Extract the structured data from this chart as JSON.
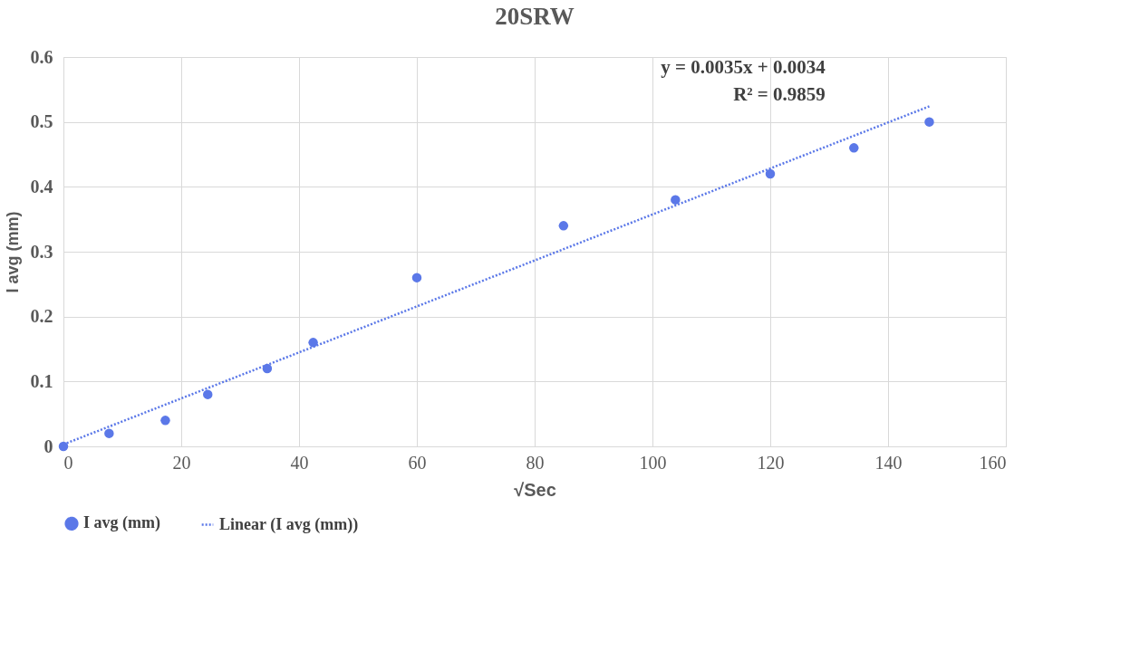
{
  "chart_data": {
    "type": "scatter",
    "title": "20SRW",
    "xlabel": "√Sec",
    "ylabel": "I avg (mm)",
    "x": [
      0,
      7.75,
      17.3,
      24.5,
      34.6,
      42.4,
      60,
      84.9,
      103.9,
      120,
      134.2,
      147
    ],
    "series": [
      {
        "name": "I avg (mm)",
        "color": "#5b78e8",
        "marker": "circle",
        "values": [
          0,
          0.02,
          0.04,
          0.08,
          0.12,
          0.16,
          0.26,
          0.34,
          0.38,
          0.42,
          0.46,
          0.5
        ]
      },
      {
        "name": "Linear (I avg (mm))",
        "color": "#5b78e8",
        "type": "line",
        "line_style": "dotted",
        "marker": "none",
        "x": [
          0,
          147
        ],
        "values": [
          0.003,
          0.524
        ]
      }
    ],
    "annotations": [
      "y = 0.0035x + 0.0034",
      "R² = 0.9859"
    ],
    "xlim": [
      0,
      160
    ],
    "xticks": [
      0,
      20,
      40,
      60,
      80,
      100,
      120,
      140,
      160
    ],
    "ylim": [
      0,
      0.6
    ],
    "yticks": [
      0,
      0.1,
      0.2,
      0.3,
      0.4,
      0.5,
      0.6
    ],
    "grid": true,
    "legend": "bottom"
  }
}
